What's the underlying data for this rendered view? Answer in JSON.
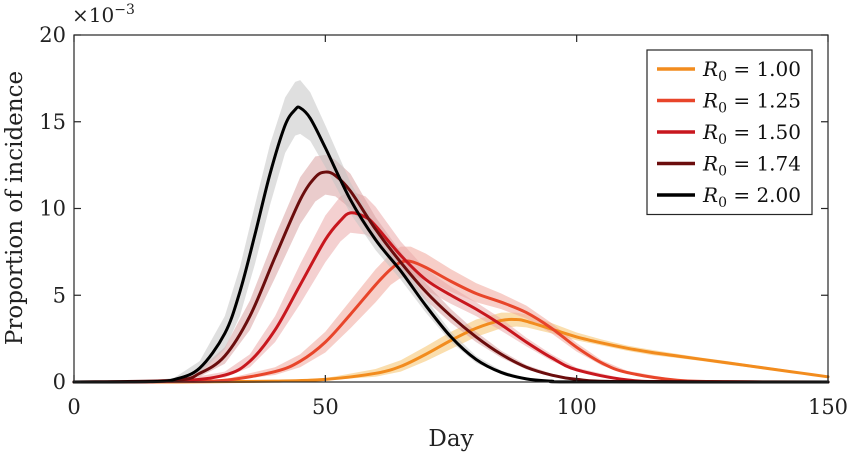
{
  "chart_data": {
    "type": "line",
    "xlabel": "Day",
    "ylabel": "Proportion of incidence",
    "y_scale_prefix": "×10",
    "y_scale_exponent": "−3",
    "xlim": [
      0,
      150
    ],
    "ylim": [
      0,
      20
    ],
    "x_ticks": [
      0,
      50,
      100,
      150
    ],
    "y_ticks": [
      0,
      5,
      10,
      15,
      20
    ],
    "legend_position": "top-right",
    "grid": false,
    "series": [
      {
        "name": "R0 = 1.00",
        "label_sym": "R",
        "label_sub": "0",
        "label_val": " = 1.00",
        "color": "#f28c1e",
        "band_color": "#f5c26b",
        "x": [
          0,
          20,
          40,
          50,
          60,
          65,
          70,
          75,
          80,
          85,
          88,
          90,
          95,
          100,
          105,
          110,
          115,
          120,
          125,
          130,
          135,
          140,
          145,
          150
        ],
        "y": [
          0,
          0.0,
          0.05,
          0.15,
          0.5,
          0.9,
          1.6,
          2.4,
          3.1,
          3.55,
          3.6,
          3.5,
          3.05,
          2.6,
          2.25,
          1.95,
          1.7,
          1.5,
          1.3,
          1.1,
          0.9,
          0.7,
          0.5,
          0.3
        ],
        "y_low": [
          0,
          0.0,
          0.03,
          0.1,
          0.3,
          0.6,
          1.2,
          1.9,
          2.6,
          3.1,
          3.2,
          3.15,
          2.8,
          2.4,
          2.1,
          1.8,
          1.55,
          1.38,
          1.2,
          1.0,
          0.82,
          0.63,
          0.45,
          0.26
        ],
        "y_high": [
          0,
          0.0,
          0.08,
          0.22,
          0.75,
          1.25,
          2.05,
          2.9,
          3.6,
          4.0,
          4.0,
          3.9,
          3.4,
          2.85,
          2.45,
          2.1,
          1.85,
          1.62,
          1.4,
          1.2,
          0.98,
          0.78,
          0.56,
          0.35
        ]
      },
      {
        "name": "R0 = 1.25",
        "label_sym": "R",
        "label_sub": "0",
        "label_val": " = 1.25",
        "color": "#e8452a",
        "band_color": "#f0a59a",
        "x": [
          0,
          20,
          30,
          40,
          45,
          50,
          55,
          60,
          63,
          65,
          67,
          70,
          75,
          80,
          85,
          90,
          95,
          100,
          105,
          110,
          120,
          130,
          150
        ],
        "y": [
          0,
          0.02,
          0.1,
          0.6,
          1.2,
          2.3,
          3.9,
          5.6,
          6.5,
          6.9,
          6.95,
          6.6,
          5.8,
          5.1,
          4.6,
          4.0,
          3.1,
          2.0,
          1.1,
          0.55,
          0.1,
          0.02,
          0
        ],
        "y_low": [
          0,
          0.01,
          0.06,
          0.4,
          0.85,
          1.7,
          3.1,
          4.6,
          5.6,
          6.0,
          6.1,
          5.9,
          5.2,
          4.6,
          4.2,
          3.65,
          2.8,
          1.75,
          0.95,
          0.45,
          0.07,
          0.01,
          0
        ],
        "y_high": [
          0,
          0.04,
          0.16,
          0.85,
          1.6,
          2.9,
          4.7,
          6.5,
          7.4,
          7.8,
          7.8,
          7.4,
          6.5,
          5.7,
          5.1,
          4.4,
          3.4,
          2.25,
          1.25,
          0.65,
          0.13,
          0.03,
          0
        ]
      },
      {
        "name": "R0 = 1.50",
        "label_sym": "R",
        "label_sub": "0",
        "label_val": " = 1.50",
        "color": "#c8171e",
        "band_color": "#eba9a9",
        "x": [
          0,
          20,
          30,
          35,
          40,
          45,
          50,
          53,
          55,
          58,
          60,
          65,
          70,
          75,
          80,
          85,
          90,
          95,
          100,
          110,
          120,
          150
        ],
        "y": [
          0,
          0.05,
          0.4,
          1.2,
          3.0,
          5.6,
          8.2,
          9.3,
          9.75,
          9.5,
          9.0,
          7.3,
          5.9,
          5.0,
          4.2,
          3.3,
          2.3,
          1.4,
          0.7,
          0.12,
          0.02,
          0
        ],
        "y_low": [
          0,
          0.03,
          0.25,
          0.85,
          2.3,
          4.5,
          6.9,
          8.1,
          8.6,
          8.5,
          8.1,
          6.6,
          5.3,
          4.5,
          3.8,
          2.95,
          2.05,
          1.22,
          0.6,
          0.09,
          0.01,
          0
        ],
        "y_high": [
          0,
          0.08,
          0.6,
          1.6,
          3.8,
          6.8,
          9.6,
          10.7,
          11.0,
          10.7,
          10.1,
          8.1,
          6.5,
          5.5,
          4.6,
          3.65,
          2.55,
          1.6,
          0.82,
          0.15,
          0.03,
          0
        ]
      },
      {
        "name": "R0 = 1.74",
        "label_sym": "R",
        "label_sub": "0",
        "label_val": " = 1.74",
        "color": "#6b0d0d",
        "band_color": "#d9a3a3",
        "x": [
          0,
          20,
          25,
          30,
          35,
          40,
          45,
          48,
          50,
          52,
          55,
          60,
          65,
          70,
          75,
          80,
          85,
          90,
          95,
          100,
          110,
          150
        ],
        "y": [
          0,
          0.1,
          0.5,
          1.5,
          3.8,
          7.2,
          10.5,
          11.8,
          12.1,
          11.9,
          11.0,
          8.8,
          6.9,
          5.2,
          3.8,
          2.6,
          1.6,
          0.85,
          0.4,
          0.15,
          0.02,
          0
        ],
        "y_low": [
          0,
          0.06,
          0.3,
          1.05,
          3.0,
          6.0,
          9.1,
          10.4,
          10.8,
          10.7,
          10.0,
          8.1,
          6.3,
          4.7,
          3.4,
          2.3,
          1.4,
          0.72,
          0.33,
          0.12,
          0.01,
          0
        ],
        "y_high": [
          0,
          0.15,
          0.75,
          2.0,
          4.7,
          8.4,
          11.8,
          13.0,
          13.1,
          12.8,
          12.0,
          9.5,
          7.5,
          5.7,
          4.2,
          2.9,
          1.8,
          0.98,
          0.48,
          0.19,
          0.03,
          0
        ]
      },
      {
        "name": "R0 = 2.00",
        "label_sym": "R",
        "label_sub": "0",
        "label_val": " = 2.00",
        "color": "#000000",
        "band_color": "#c4c4c4",
        "x": [
          0,
          15,
          20,
          25,
          30,
          33,
          36,
          39,
          42,
          44,
          45,
          47,
          50,
          55,
          60,
          65,
          70,
          75,
          80,
          85,
          90,
          95,
          100,
          150
        ],
        "y": [
          0,
          0.02,
          0.15,
          0.8,
          2.8,
          5.2,
          8.5,
          12.0,
          14.8,
          15.7,
          15.8,
          15.2,
          13.5,
          10.5,
          8.2,
          6.4,
          4.4,
          2.6,
          1.3,
          0.55,
          0.18,
          0.05,
          0.01,
          0
        ],
        "y_low": [
          0,
          0.01,
          0.08,
          0.5,
          1.9,
          3.8,
          6.8,
          10.2,
          13.2,
          14.2,
          14.3,
          13.9,
          12.4,
          9.7,
          7.6,
          5.9,
          4.0,
          2.3,
          1.1,
          0.45,
          0.14,
          0.04,
          0.005,
          0
        ],
        "y_high": [
          0,
          0.04,
          0.25,
          1.2,
          3.8,
          6.6,
          10.2,
          13.7,
          16.4,
          17.3,
          17.4,
          16.7,
          14.8,
          11.5,
          9.0,
          7.0,
          4.8,
          2.9,
          1.5,
          0.66,
          0.23,
          0.07,
          0.015,
          0
        ]
      }
    ]
  }
}
